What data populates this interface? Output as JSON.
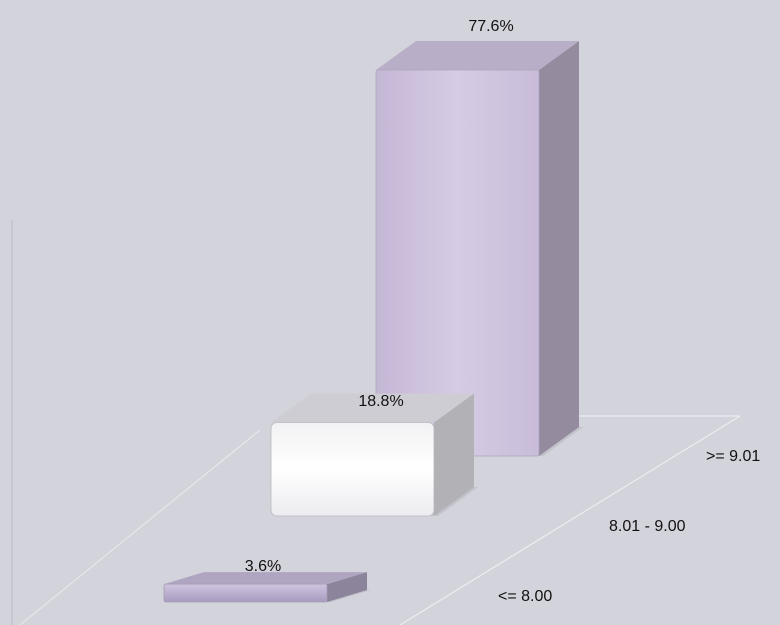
{
  "chart_data": {
    "type": "bar",
    "style": "3d-depth",
    "categories": [
      ">= 9.01",
      "8.01 - 9.00",
      "<= 8.00"
    ],
    "values": [
      77.6,
      18.8,
      3.6
    ],
    "value_labels": [
      "77.6%",
      "18.8%",
      "3.6%"
    ],
    "unit": "%",
    "colors": [
      "#cdc1dd",
      "#ffffff",
      "#c2b7d6"
    ],
    "title": "",
    "xlabel": "",
    "ylabel": "",
    "ylim": [
      0,
      80
    ],
    "grid": false,
    "legend": "none"
  },
  "colors": {
    "background": "#d3d3db",
    "floor_line": "#e9e9ef"
  }
}
